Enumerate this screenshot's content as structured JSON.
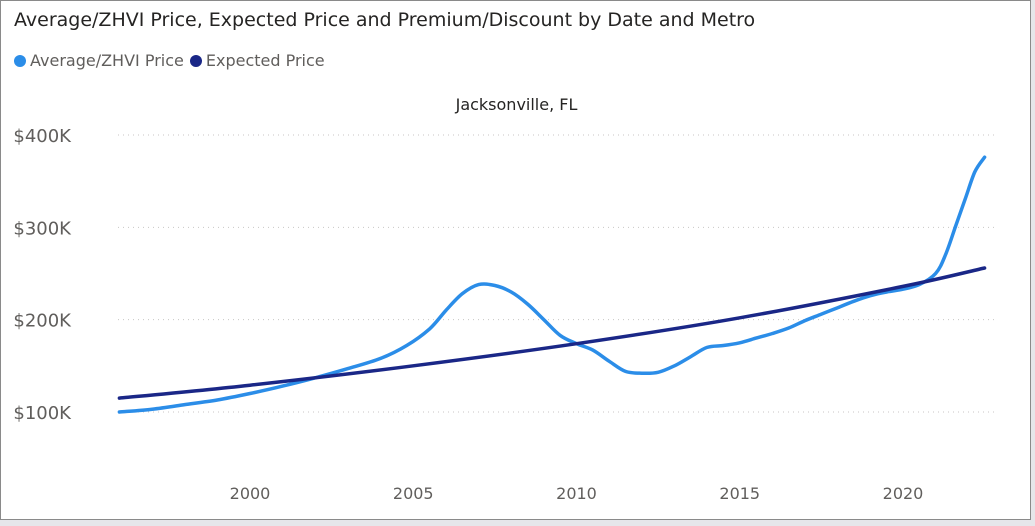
{
  "colors": {
    "average": "#2b8de8",
    "expected": "#1a2787",
    "grid": "#c8c6c4"
  },
  "chart_data": {
    "type": "line",
    "title": "Average/ZHVI Price, Expected Price and Premium/Discount by Date and Metro",
    "subtitle": "Jacksonville, FL",
    "legend_placement": "top-left",
    "grid": true,
    "xlim": [
      1996,
      2022.5
    ],
    "ylim": [
      100000,
      400000
    ],
    "y_ticks": [
      {
        "value": 100000,
        "label": "$100K"
      },
      {
        "value": 200000,
        "label": "$200K"
      },
      {
        "value": 300000,
        "label": "$300K"
      },
      {
        "value": 400000,
        "label": "$400K"
      }
    ],
    "x_ticks": [
      {
        "value": 2000,
        "label": "2000"
      },
      {
        "value": 2005,
        "label": "2005"
      },
      {
        "value": 2010,
        "label": "2010"
      },
      {
        "value": 2015,
        "label": "2015"
      },
      {
        "value": 2020,
        "label": "2020"
      }
    ],
    "series": [
      {
        "name": "Average/ZHVI Price",
        "color_key": "average",
        "points": [
          [
            1996,
            100000
          ],
          [
            1997,
            103000
          ],
          [
            1998,
            108000
          ],
          [
            1999,
            113000
          ],
          [
            2000,
            120000
          ],
          [
            2001,
            128000
          ],
          [
            2002,
            137000
          ],
          [
            2003,
            147000
          ],
          [
            2004,
            158000
          ],
          [
            2004.8,
            172000
          ],
          [
            2005.5,
            190000
          ],
          [
            2006,
            210000
          ],
          [
            2006.5,
            228000
          ],
          [
            2007,
            238000
          ],
          [
            2007.5,
            237000
          ],
          [
            2008,
            230000
          ],
          [
            2008.5,
            217000
          ],
          [
            2009,
            200000
          ],
          [
            2009.5,
            183000
          ],
          [
            2010,
            174000
          ],
          [
            2010.5,
            167000
          ],
          [
            2011,
            155000
          ],
          [
            2011.5,
            144000
          ],
          [
            2012,
            142000
          ],
          [
            2012.5,
            143000
          ],
          [
            2013,
            150000
          ],
          [
            2013.5,
            160000
          ],
          [
            2014,
            170000
          ],
          [
            2014.5,
            172000
          ],
          [
            2015,
            175000
          ],
          [
            2015.5,
            180000
          ],
          [
            2016,
            185000
          ],
          [
            2016.5,
            191000
          ],
          [
            2017,
            199000
          ],
          [
            2017.5,
            206000
          ],
          [
            2018,
            213000
          ],
          [
            2018.5,
            220000
          ],
          [
            2019,
            226000
          ],
          [
            2019.5,
            230000
          ],
          [
            2020,
            233000
          ],
          [
            2020.5,
            238000
          ],
          [
            2021,
            250000
          ],
          [
            2021.3,
            270000
          ],
          [
            2021.6,
            300000
          ],
          [
            2021.9,
            330000
          ],
          [
            2022.2,
            360000
          ],
          [
            2022.5,
            376000
          ]
        ]
      },
      {
        "name": "Expected Price",
        "color_key": "expected",
        "points": [
          [
            1996,
            115000
          ],
          [
            2000,
            129000
          ],
          [
            2005,
            150000
          ],
          [
            2010,
            174000
          ],
          [
            2015,
            202000
          ],
          [
            2020,
            236000
          ],
          [
            2022.5,
            256000
          ]
        ]
      }
    ]
  }
}
